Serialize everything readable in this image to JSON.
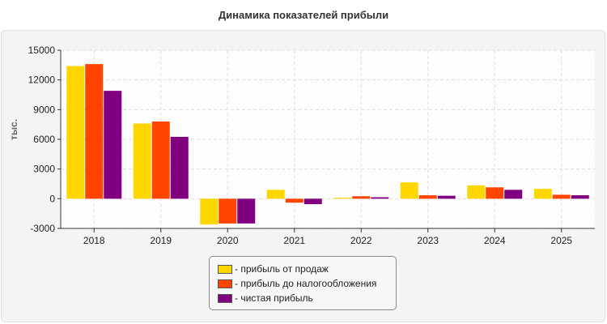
{
  "chart_data": {
    "type": "bar",
    "title": "Динамика показателей прибыли",
    "ylabel": "тыс.",
    "xlabel": "",
    "ylim": [
      -3000,
      15000
    ],
    "yticks": [
      "-3000",
      "0",
      "3000",
      "6000",
      "9000",
      "12000",
      "15000"
    ],
    "grid": true,
    "legend_position": "bottom",
    "categories": [
      "2018",
      "2019",
      "2020",
      "2021",
      "2022",
      "2023",
      "2024",
      "2025"
    ],
    "series": [
      {
        "name": "- прибыль от продаж",
        "color": "#ffd700",
        "values": [
          13400,
          7600,
          -2600,
          900,
          100,
          1650,
          1350,
          1000
        ]
      },
      {
        "name": "- прибыль до налогообложения",
        "color": "#ff4500",
        "values": [
          13600,
          7800,
          -2500,
          -400,
          250,
          350,
          1150,
          400
        ]
      },
      {
        "name": "- чистая прибыль",
        "color": "#800080",
        "values": [
          10900,
          6250,
          -2500,
          -550,
          150,
          300,
          900,
          350
        ]
      }
    ]
  }
}
